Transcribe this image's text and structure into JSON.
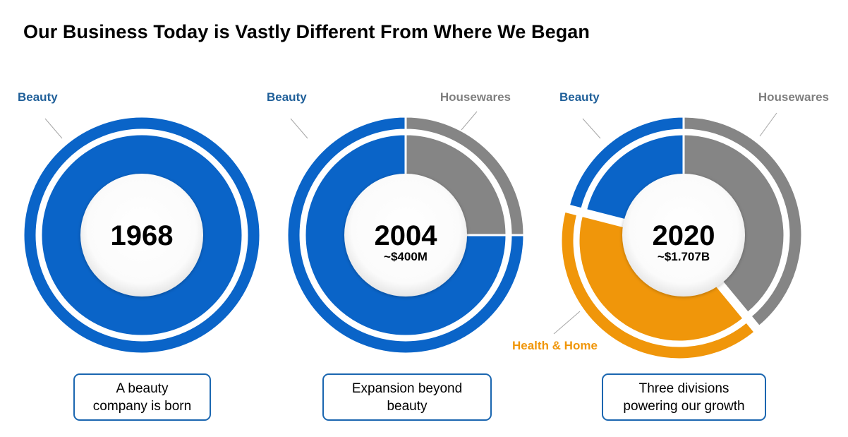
{
  "title": "Our Business Today is Vastly Different From Where We Began",
  "colors": {
    "beauty": "#0a64c8",
    "beauty_label": "#1f5f99",
    "housewares": "#858585",
    "housewares_label": "#7f7f7f",
    "health_home": "#f0960a",
    "caption_border": "#1a66b0"
  },
  "chart_data": [
    {
      "type": "pie",
      "year": "1968",
      "revenue": "",
      "categories": [
        "Beauty"
      ],
      "values": [
        100
      ],
      "labels": [
        {
          "text": "Beauty",
          "color_key": "beauty_label"
        }
      ],
      "caption_lines": [
        "A beauty",
        "company is born"
      ]
    },
    {
      "type": "pie",
      "year": "2004",
      "revenue": "~$400M",
      "categories": [
        "Housewares",
        "Beauty"
      ],
      "values": [
        25,
        75
      ],
      "labels": [
        {
          "text": "Beauty",
          "color_key": "beauty_label"
        },
        {
          "text": "Housewares",
          "color_key": "housewares_label"
        }
      ],
      "caption_lines": [
        "Expansion beyond",
        "beauty"
      ]
    },
    {
      "type": "pie",
      "year": "2020",
      "revenue": "~$1.707B",
      "categories": [
        "Housewares",
        "Health & Home",
        "Beauty"
      ],
      "values": [
        39,
        40,
        21
      ],
      "labels": [
        {
          "text": "Beauty",
          "color_key": "beauty_label"
        },
        {
          "text": "Housewares",
          "color_key": "housewares_label"
        },
        {
          "text": "Health & Home",
          "color_key": "health_home"
        }
      ],
      "caption_lines": [
        "Three divisions",
        "powering our growth"
      ]
    }
  ]
}
